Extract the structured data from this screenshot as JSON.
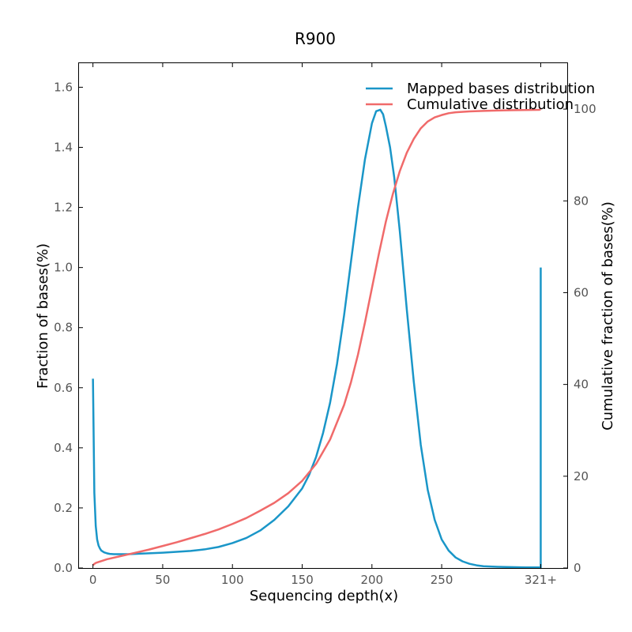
{
  "chart_data": {
    "type": "line",
    "title": "R900",
    "xlabel": "Sequencing depth(x)",
    "ylabel": "Fraction of bases(%)",
    "y2label": "Cumulative fraction of bases(%)",
    "xlim": [
      -10,
      340
    ],
    "ylim": [
      0,
      1.68
    ],
    "y2lim": [
      0,
      110
    ],
    "x_ticks": [
      0,
      50,
      100,
      150,
      200,
      250,
      321
    ],
    "x_tick_labels": [
      "0",
      "50",
      "100",
      "150",
      "200",
      "250",
      "321+"
    ],
    "y_ticks": [
      0.0,
      0.2,
      0.4,
      0.6,
      0.8,
      1.0,
      1.2,
      1.4,
      1.6
    ],
    "y_tick_labels": [
      "0.0",
      "0.2",
      "0.4",
      "0.6",
      "0.8",
      "1.0",
      "1.2",
      "1.4",
      "1.6"
    ],
    "y2_ticks": [
      0,
      20,
      40,
      60,
      80,
      100
    ],
    "y2_tick_labels": [
      "0",
      "20",
      "40",
      "60",
      "80",
      "100"
    ],
    "grid": false,
    "legend_position": "top-right",
    "series": [
      {
        "name": "Mapped bases distribution",
        "axis": "left",
        "color": "#1a96c8",
        "x": [
          0,
          1,
          2,
          3,
          4,
          5,
          6,
          8,
          10,
          12,
          15,
          20,
          25,
          30,
          40,
          50,
          60,
          70,
          80,
          90,
          100,
          110,
          120,
          130,
          140,
          150,
          155,
          160,
          165,
          170,
          175,
          180,
          185,
          190,
          195,
          200,
          203,
          206,
          208,
          210,
          213,
          216,
          220,
          225,
          230,
          235,
          240,
          245,
          250,
          255,
          260,
          265,
          270,
          275,
          280,
          290,
          300,
          310,
          320,
          321,
          321
        ],
        "y": [
          0.63,
          0.25,
          0.14,
          0.095,
          0.075,
          0.065,
          0.058,
          0.052,
          0.049,
          0.047,
          0.046,
          0.046,
          0.046,
          0.047,
          0.049,
          0.051,
          0.054,
          0.057,
          0.062,
          0.07,
          0.083,
          0.1,
          0.125,
          0.16,
          0.205,
          0.265,
          0.31,
          0.37,
          0.45,
          0.55,
          0.68,
          0.84,
          1.02,
          1.2,
          1.36,
          1.48,
          1.52,
          1.525,
          1.51,
          1.47,
          1.4,
          1.3,
          1.12,
          0.86,
          0.62,
          0.41,
          0.26,
          0.16,
          0.095,
          0.058,
          0.035,
          0.022,
          0.014,
          0.009,
          0.006,
          0.004,
          0.003,
          0.002,
          0.002,
          0.0,
          1.0
        ]
      },
      {
        "name": "Cumulative distribution",
        "axis": "right",
        "color": "#f06a6a",
        "x": [
          0,
          1,
          2,
          5,
          10,
          20,
          30,
          40,
          50,
          60,
          70,
          80,
          90,
          100,
          110,
          120,
          130,
          140,
          150,
          160,
          170,
          180,
          185,
          190,
          195,
          200,
          205,
          210,
          215,
          220,
          225,
          230,
          235,
          240,
          245,
          250,
          255,
          260,
          270,
          280,
          290,
          300,
          310,
          320,
          321
        ],
        "y": [
          0.6,
          0.9,
          1.1,
          1.4,
          1.9,
          2.6,
          3.3,
          4.0,
          4.8,
          5.6,
          6.5,
          7.4,
          8.4,
          9.6,
          10.9,
          12.5,
          14.2,
          16.3,
          19.0,
          22.7,
          28.0,
          35.5,
          40.5,
          46.5,
          53.5,
          61.0,
          68.5,
          75.5,
          81.5,
          86.5,
          90.5,
          93.5,
          95.8,
          97.3,
          98.2,
          98.7,
          99.1,
          99.3,
          99.5,
          99.6,
          99.7,
          99.75,
          99.8,
          99.85,
          100.0
        ]
      }
    ]
  }
}
